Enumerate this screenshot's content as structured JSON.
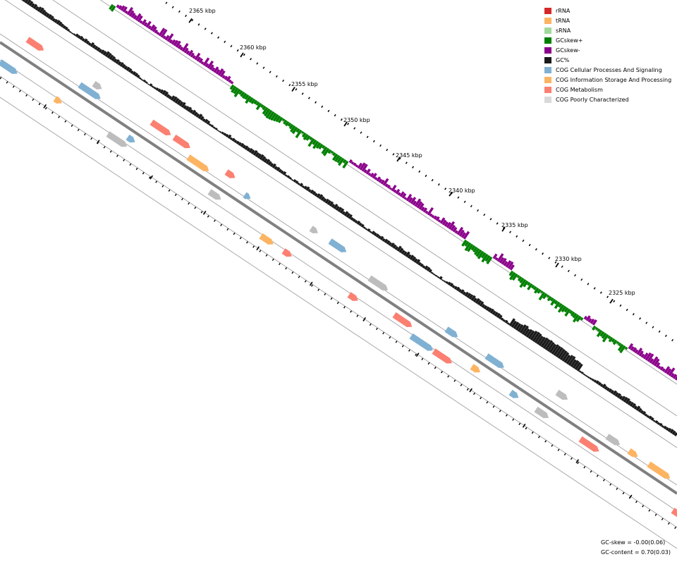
{
  "ticks": [
    {
      "label": "2365 kbp"
    },
    {
      "label": "2360 kbp"
    },
    {
      "label": "2355 kbp"
    },
    {
      "label": "2350 kbp"
    },
    {
      "label": "2345 kbp"
    },
    {
      "label": "2340 kbp"
    },
    {
      "label": "2335 kbp"
    },
    {
      "label": "2330 kbp"
    },
    {
      "label": "2325 kbp"
    }
  ],
  "legend": [
    {
      "label": "rRNA",
      "color": "#d62728"
    },
    {
      "label": "tRNA",
      "color": "#fdb462"
    },
    {
      "label": "sRNA",
      "color": "#a1d99b"
    },
    {
      "label": "GCskew+",
      "color": "#008000"
    },
    {
      "label": "GCskew-",
      "color": "#8b008b"
    },
    {
      "label": "GC%",
      "color": "#1a1a1a"
    },
    {
      "label": "COG Cellular Processes And Signaling",
      "color": "#80b1d3"
    },
    {
      "label": "COG Information Storage And Processing",
      "color": "#fdb462"
    },
    {
      "label": "COG Metabolism",
      "color": "#fb8072"
    },
    {
      "label": "COG Poorly Characterized",
      "color": "#d9d9d9"
    }
  ],
  "stats": {
    "gc_skew": "GC-skew = -0.00(0.06)",
    "gc_content": "GC-content = 0.70(0.03)"
  }
}
